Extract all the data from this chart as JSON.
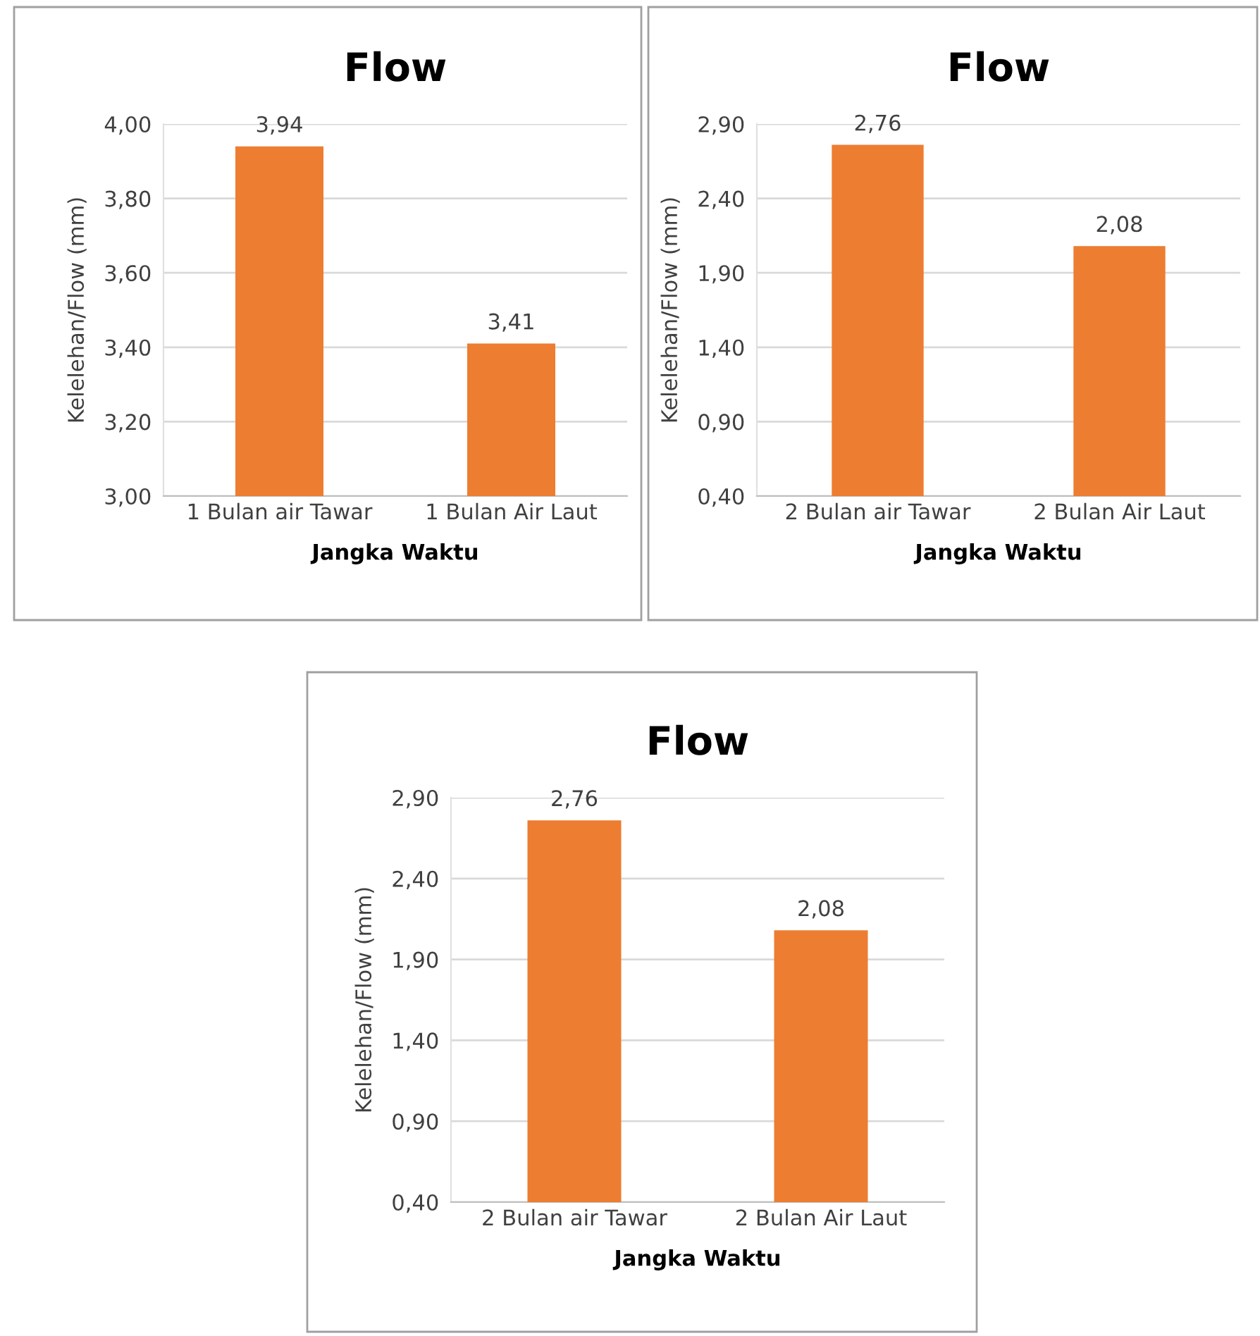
{
  "chart_data": [
    {
      "type": "bar",
      "title": "Flow",
      "xlabel": "Jangka Waktu",
      "ylabel": "Kelelehan/Flow (mm)",
      "categories": [
        "1 Bulan air Tawar",
        "1 Bulan Air Laut"
      ],
      "values": [
        3.94,
        3.41
      ],
      "value_labels": [
        "3,94",
        "3,41"
      ],
      "color": "#ed7d31",
      "ylim": [
        3.0,
        4.0
      ],
      "yticks": [
        {
          "value": 3.0,
          "label": "3,00"
        },
        {
          "value": 3.2,
          "label": "3,20"
        },
        {
          "value": 3.4,
          "label": "3,40"
        },
        {
          "value": 3.6,
          "label": "3,60"
        },
        {
          "value": 3.8,
          "label": "3,80"
        },
        {
          "value": 4.0,
          "label": "4,00"
        }
      ],
      "grid": "y"
    },
    {
      "type": "bar",
      "title": "Flow",
      "xlabel": "Jangka Waktu",
      "ylabel": "Kelelehan/Flow (mm)",
      "categories": [
        "2 Bulan air Tawar",
        "2 Bulan Air Laut"
      ],
      "values": [
        2.76,
        2.08
      ],
      "value_labels": [
        "2,76",
        "2,08"
      ],
      "color": "#ed7d31",
      "ylim": [
        0.4,
        2.9
      ],
      "yticks": [
        {
          "value": 0.4,
          "label": "0,40"
        },
        {
          "value": 0.9,
          "label": "0,90"
        },
        {
          "value": 1.4,
          "label": "1,40"
        },
        {
          "value": 1.9,
          "label": "1,90"
        },
        {
          "value": 2.4,
          "label": "2,40"
        },
        {
          "value": 2.9,
          "label": "2,90"
        }
      ],
      "grid": "y"
    },
    {
      "type": "bar",
      "title": "Flow",
      "xlabel": "Jangka Waktu",
      "ylabel": "Kelelehan/Flow (mm)",
      "categories": [
        "2 Bulan air Tawar",
        "2 Bulan Air Laut"
      ],
      "values": [
        2.76,
        2.08
      ],
      "value_labels": [
        "2,76",
        "2,08"
      ],
      "color": "#ed7d31",
      "ylim": [
        0.4,
        2.9
      ],
      "yticks": [
        {
          "value": 0.4,
          "label": "0,40"
        },
        {
          "value": 0.9,
          "label": "0,90"
        },
        {
          "value": 1.4,
          "label": "1,40"
        },
        {
          "value": 1.9,
          "label": "1,90"
        },
        {
          "value": 2.4,
          "label": "2,40"
        },
        {
          "value": 2.9,
          "label": "2,90"
        }
      ],
      "grid": "y"
    }
  ]
}
